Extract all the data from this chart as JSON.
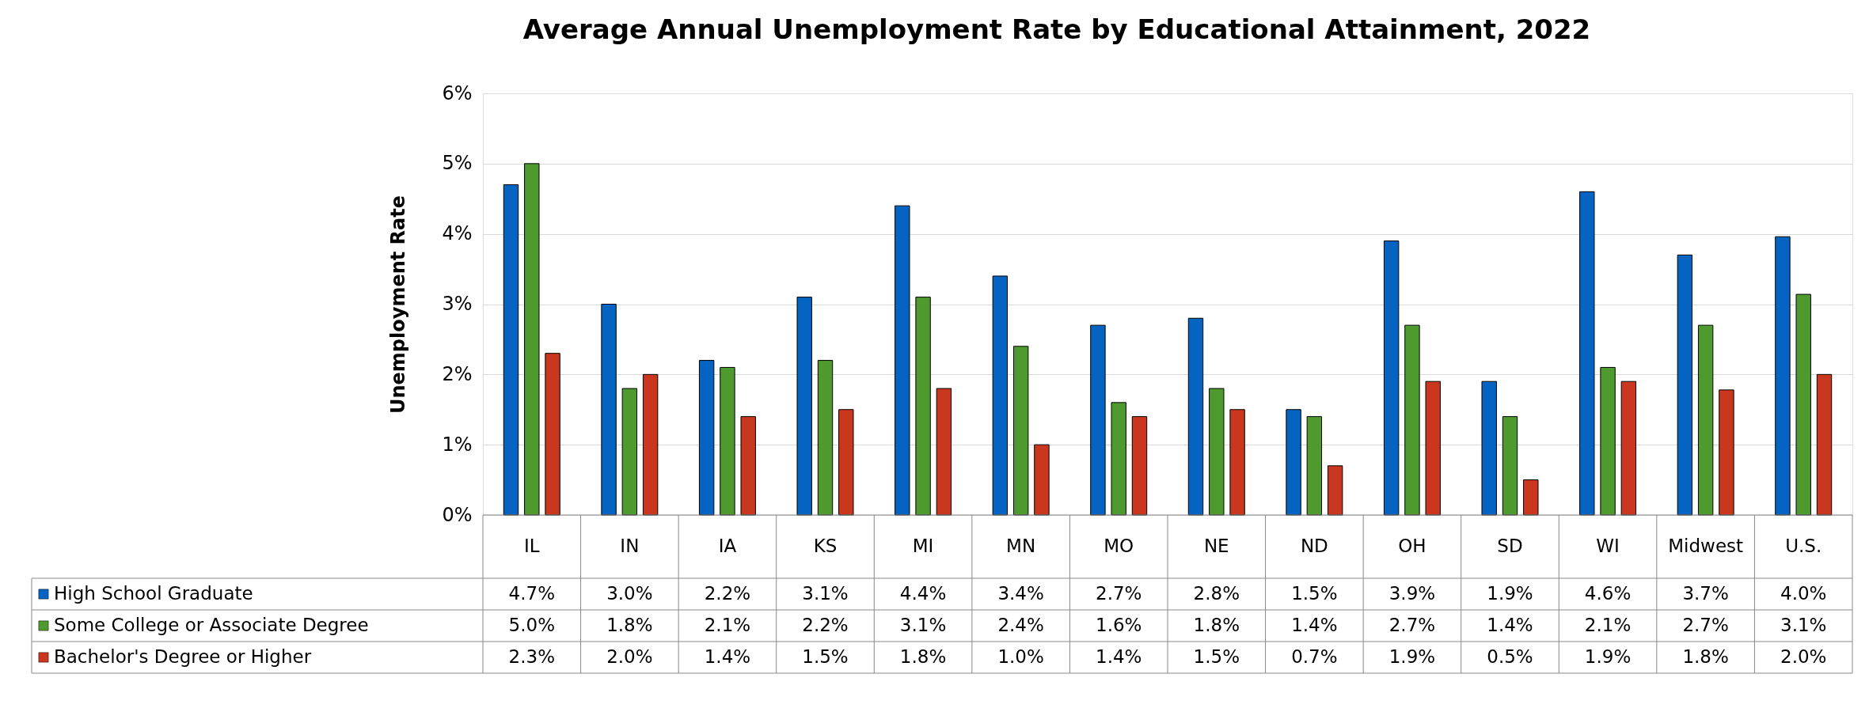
{
  "chart_data": {
    "type": "bar",
    "title": "Average Annual Unemployment Rate by Educational Attainment, 2022",
    "ylabel": "Unemployment Rate",
    "categories": [
      "IL",
      "IN",
      "IA",
      "KS",
      "MI",
      "MN",
      "MO",
      "NE",
      "ND",
      "OH",
      "SD",
      "WI",
      "Midwest",
      "U.S."
    ],
    "series": [
      {
        "name": "High School Graduate",
        "color": "#0563c1",
        "values": [
          4.7,
          3.0,
          2.2,
          3.1,
          4.4,
          3.4,
          2.7,
          2.8,
          1.5,
          3.9,
          1.9,
          4.6,
          3.7,
          3.96
        ],
        "value_labels": [
          "4.7%",
          "3.0%",
          "2.2%",
          "3.1%",
          "4.4%",
          "3.4%",
          "2.7%",
          "2.8%",
          "1.5%",
          "3.9%",
          "1.9%",
          "4.6%",
          "3.7%",
          "4.0%"
        ]
      },
      {
        "name": "Some College or Associate Degree",
        "color": "#4e9a2e",
        "values": [
          5.0,
          1.8,
          2.1,
          2.2,
          3.1,
          2.4,
          1.6,
          1.8,
          1.4,
          2.7,
          1.4,
          2.1,
          2.7,
          3.14
        ],
        "value_labels": [
          "5.0%",
          "1.8%",
          "2.1%",
          "2.2%",
          "3.1%",
          "2.4%",
          "1.6%",
          "1.8%",
          "1.4%",
          "2.7%",
          "1.4%",
          "2.1%",
          "2.7%",
          "3.1%"
        ]
      },
      {
        "name": "Bachelor's Degree or Higher",
        "color": "#c9381e",
        "values": [
          2.3,
          2.0,
          1.4,
          1.5,
          1.8,
          1.0,
          1.4,
          1.5,
          0.7,
          1.9,
          0.5,
          1.9,
          1.78,
          2.0
        ],
        "value_labels": [
          "2.3%",
          "2.0%",
          "1.4%",
          "1.5%",
          "1.8%",
          "1.0%",
          "1.4%",
          "1.5%",
          "0.7%",
          "1.9%",
          "0.5%",
          "1.9%",
          "1.8%",
          "2.0%"
        ]
      }
    ],
    "ylim": [
      0,
      6
    ],
    "yticks": [
      {
        "value": 0,
        "label": "0%"
      },
      {
        "value": 1,
        "label": "1%"
      },
      {
        "value": 2,
        "label": "2%"
      },
      {
        "value": 3,
        "label": "3%"
      },
      {
        "value": 4,
        "label": "4%"
      },
      {
        "value": 5,
        "label": "5%"
      },
      {
        "value": 6,
        "label": "6%"
      }
    ],
    "grid": "y",
    "legend": "bottom"
  }
}
